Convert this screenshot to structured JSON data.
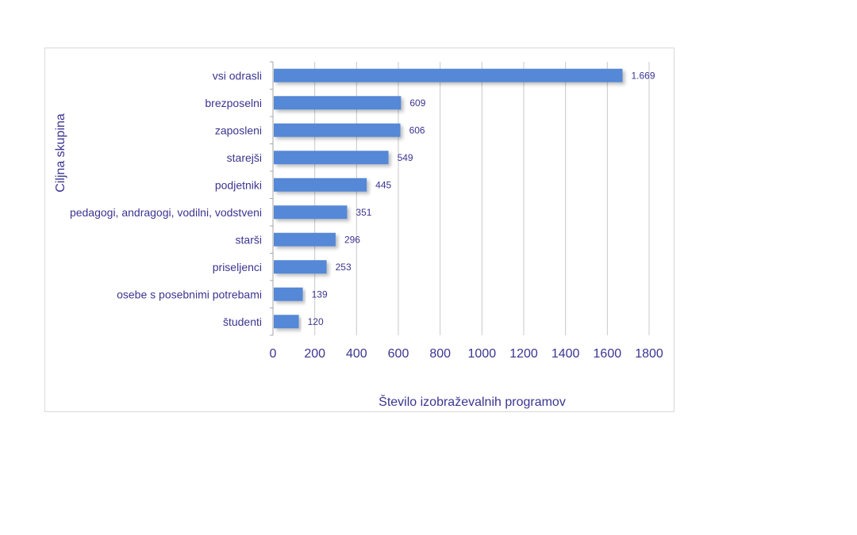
{
  "chart_data": {
    "type": "bar",
    "orientation": "horizontal",
    "title": "",
    "xlabel": "Število izobraževalnih programov",
    "ylabel": "Ciljna skupina",
    "categories": [
      "vsi odrasli",
      "brezposelni",
      "zaposleni",
      "starejši",
      "podjetniki",
      "pedagogi, andragogi, vodilni, vodstveni",
      "starši",
      "priseljenci",
      "osebe s posebnimi potrebami",
      "študenti"
    ],
    "values": [
      1669,
      609,
      606,
      549,
      445,
      351,
      296,
      253,
      139,
      120
    ],
    "data_labels": [
      "1.669",
      "609",
      "606",
      "549",
      "445",
      "351",
      "296",
      "253",
      "139",
      "120"
    ],
    "xlim": [
      0,
      1800
    ],
    "xticks": [
      "0",
      "200",
      "400",
      "600",
      "800",
      "1000",
      "1200",
      "1400",
      "1600",
      "1800"
    ],
    "grid": true,
    "legend": "none",
    "bar_color": "#5588d6",
    "text_color": "#3a3590",
    "grid_color": "#c8c8c8"
  }
}
